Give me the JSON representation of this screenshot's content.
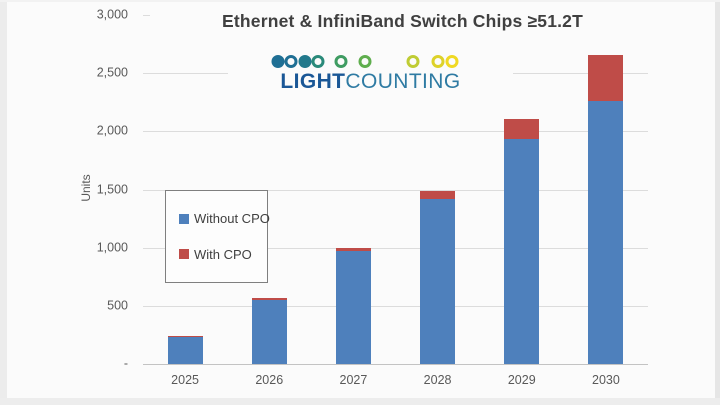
{
  "title": "Ethernet & InfiniBand Switch Chips ≥51.2T",
  "logo": {
    "bold": "LIGHT",
    "regular": "COUNTING",
    "bold_color": "#1a5796",
    "regular_color": "#2f7ba3",
    "chain_colors": [
      "#1f6f94",
      "#22798c",
      "#2a8a7a",
      "#3f9c62",
      "#5fae4e",
      "#8fc043",
      "#bfcc34",
      "#ddd22a",
      "#f0d923"
    ]
  },
  "y_axis": {
    "label": "Units",
    "ticks": [
      {
        "label": "3,000",
        "value": 3000
      },
      {
        "label": "2,500",
        "value": 2500
      },
      {
        "label": "2,000",
        "value": 2000
      },
      {
        "label": "1,500",
        "value": 1500
      },
      {
        "label": "1,000",
        "value": 1000
      },
      {
        "label": "500",
        "value": 500
      },
      {
        "label": "-",
        "value": 0
      }
    ]
  },
  "chart_data": {
    "type": "bar",
    "stacked": true,
    "title": "Ethernet & InfiniBand Switch Chips ≥51.2T",
    "xlabel": "",
    "ylabel": "Units",
    "ylim": [
      0,
      3000
    ],
    "ytick_step": 500,
    "grid": true,
    "legend_position": "center-left",
    "categories": [
      "2025",
      "2026",
      "2027",
      "2028",
      "2029",
      "2030"
    ],
    "series": [
      {
        "name": "Without CPO",
        "color": "#4e80bc",
        "values": [
          230,
          550,
          970,
          1420,
          1930,
          2260
        ]
      },
      {
        "name": "With CPO",
        "color": "#bf4c48",
        "values": [
          10,
          20,
          30,
          70,
          180,
          400
        ]
      }
    ],
    "totals": [
      240,
      570,
      1000,
      1490,
      2110,
      2660
    ]
  }
}
